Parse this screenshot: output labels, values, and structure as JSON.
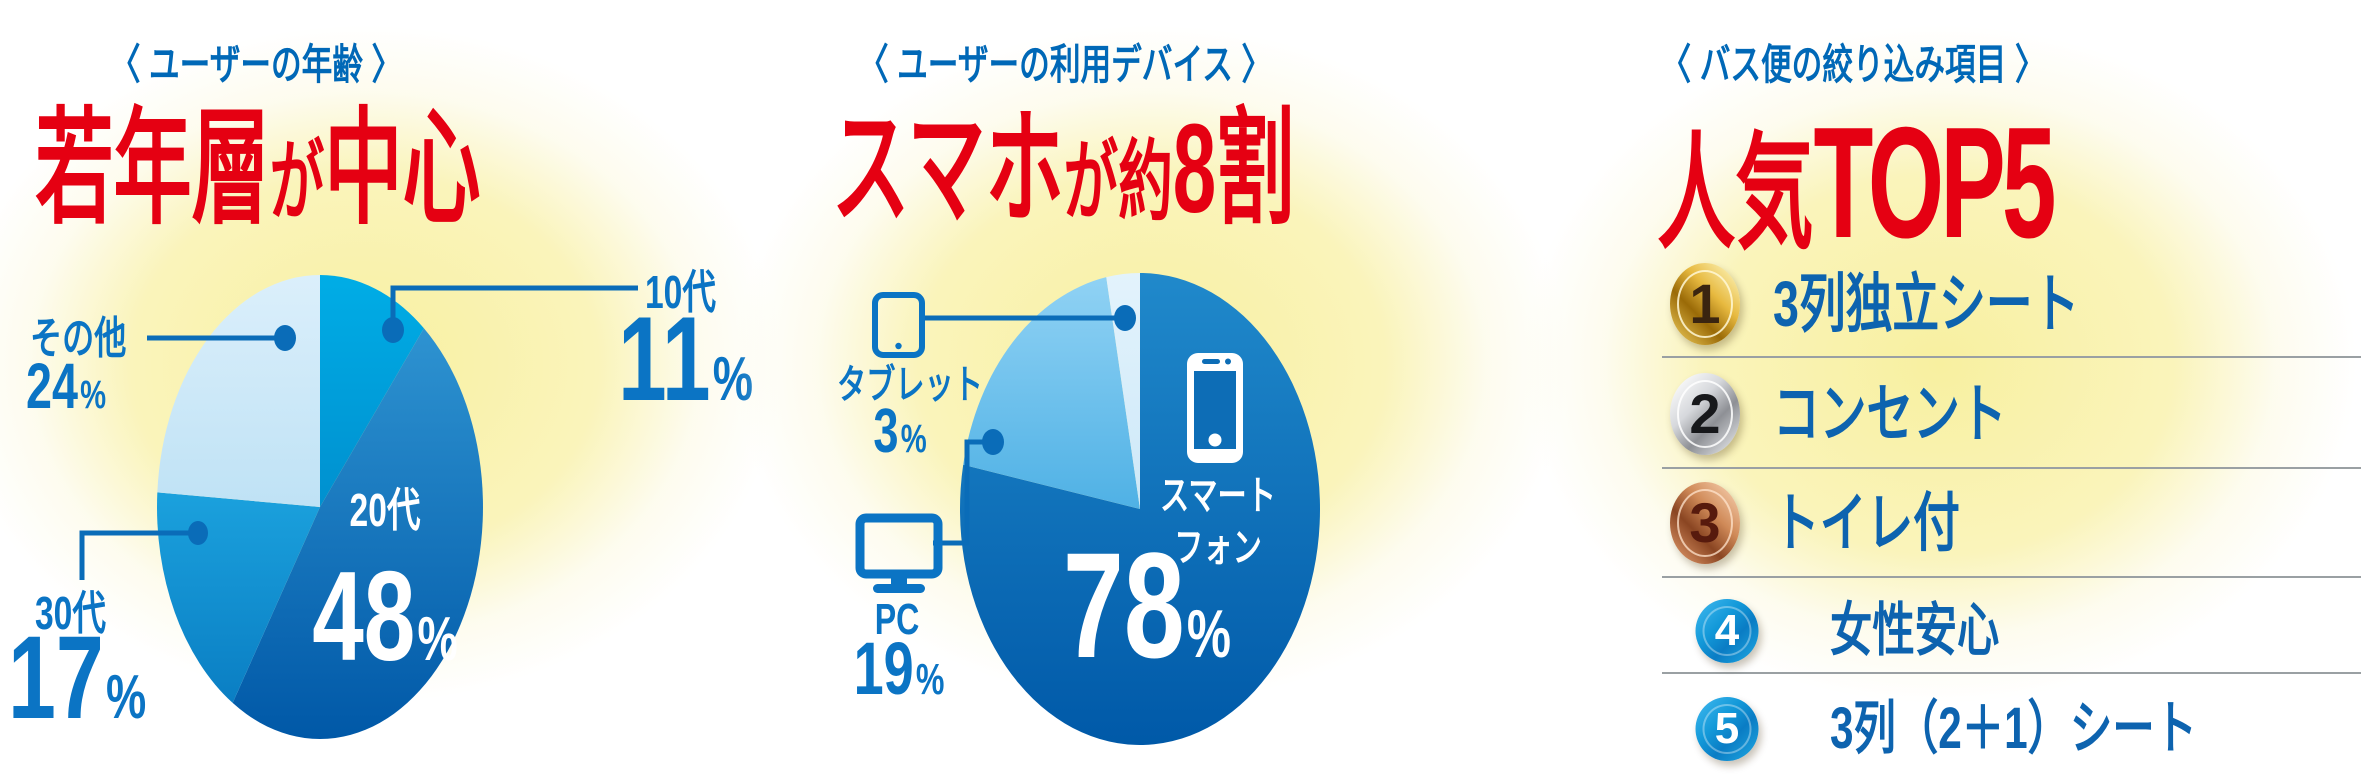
{
  "panels": [
    {
      "header": "〈 ユーザーの年齢 〉",
      "title_parts": [
        "若年層",
        "が",
        "中心"
      ]
    },
    {
      "header": "〈 ユーザーの利用デバイス 〉",
      "title_parts": [
        "スマホ",
        "が約",
        "8割"
      ]
    },
    {
      "header": "〈 バス便の絞り込み項目 〉",
      "title_parts": [
        "人気",
        "TOP5"
      ]
    }
  ],
  "chart_data": [
    {
      "type": "pie",
      "title": "ユーザーの年齢",
      "subtitle": "若年層が中心",
      "unit": "%",
      "start": "top",
      "direction": "clockwise",
      "slices": [
        {
          "label": "10代",
          "value": 11,
          "colors": [
            "#00ade6",
            "#0090cf"
          ]
        },
        {
          "label": "20代",
          "value": 48,
          "colors": [
            "#2e93d1",
            "#0058a7"
          ]
        },
        {
          "label": "30代",
          "value": 17,
          "colors": [
            "#1ba1dd",
            "#0a7ec3"
          ]
        },
        {
          "label": "その他",
          "value": 24,
          "colors": [
            "#dbeffb",
            "#bfe2f5"
          ]
        }
      ]
    },
    {
      "type": "pie",
      "title": "ユーザーの利用デバイス",
      "subtitle": "スマホが約8割",
      "unit": "%",
      "start": "top",
      "direction": "clockwise",
      "slices": [
        {
          "label": "スマートフォン",
          "label_lines": [
            "スマート",
            "フォン"
          ],
          "value": 78,
          "colors": [
            "#2089cb",
            "#0059a8"
          ]
        },
        {
          "label": "PC",
          "value": 19,
          "colors": [
            "#90d2f4",
            "#4fb1e5"
          ]
        },
        {
          "label": "タブレット",
          "value": 3,
          "colors": [
            "#e3f3fc",
            "#cde8f8"
          ]
        }
      ]
    }
  ],
  "top5": {
    "title": "バス便の絞り込み項目 人気TOP5",
    "items": [
      {
        "rank": 1,
        "label": "3列独立シート",
        "medal": "gold"
      },
      {
        "rank": 2,
        "label": "コンセント",
        "medal": "silver"
      },
      {
        "rank": 3,
        "label": "トイレ付",
        "medal": "bronze"
      },
      {
        "rank": 4,
        "label": "女性安心",
        "medal": "blue"
      },
      {
        "rank": 5,
        "label": "3列（2＋1）シート",
        "medal": "blue"
      }
    ]
  },
  "colors": {
    "red": "#e50012",
    "header_blue": "#0068b7",
    "label_blue": "#0b74c4",
    "line_blue": "#0a6cb8",
    "list_blue": "#0d63af",
    "divider_gray": "#9aa0a3",
    "glow_core": "#f8f0a0",
    "glow_mid": "#faf4bb",
    "phone_screen": "#0d6db6",
    "icon_blue": "#0b74c4",
    "medals": {
      "gold": {
        "face": [
          "#fdf4b8",
          "#e7b93f",
          "#9a6a07",
          "#edca5a"
        ],
        "num": "#3a2410",
        "ring": "rgba(255,248,214,.85)"
      },
      "silver": {
        "face": [
          "#ffffff",
          "#d6d8dc",
          "#8e9095",
          "#e9ebee"
        ],
        "num": "#17181b",
        "ring": "rgba(255,255,255,.85)"
      },
      "bronze": {
        "face": [
          "#f6cead",
          "#d08a58",
          "#8a4522",
          "#e29b6c"
        ],
        "num": "#571a0d",
        "ring": "rgba(255,228,205,.75)"
      },
      "blue": {
        "face": [
          "#3cb5ec",
          "#1399d9",
          "#0a7cc4",
          "#1ea6e0"
        ],
        "num": "#ffffff",
        "ring": "rgba(255,255,255,.35)"
      }
    }
  }
}
